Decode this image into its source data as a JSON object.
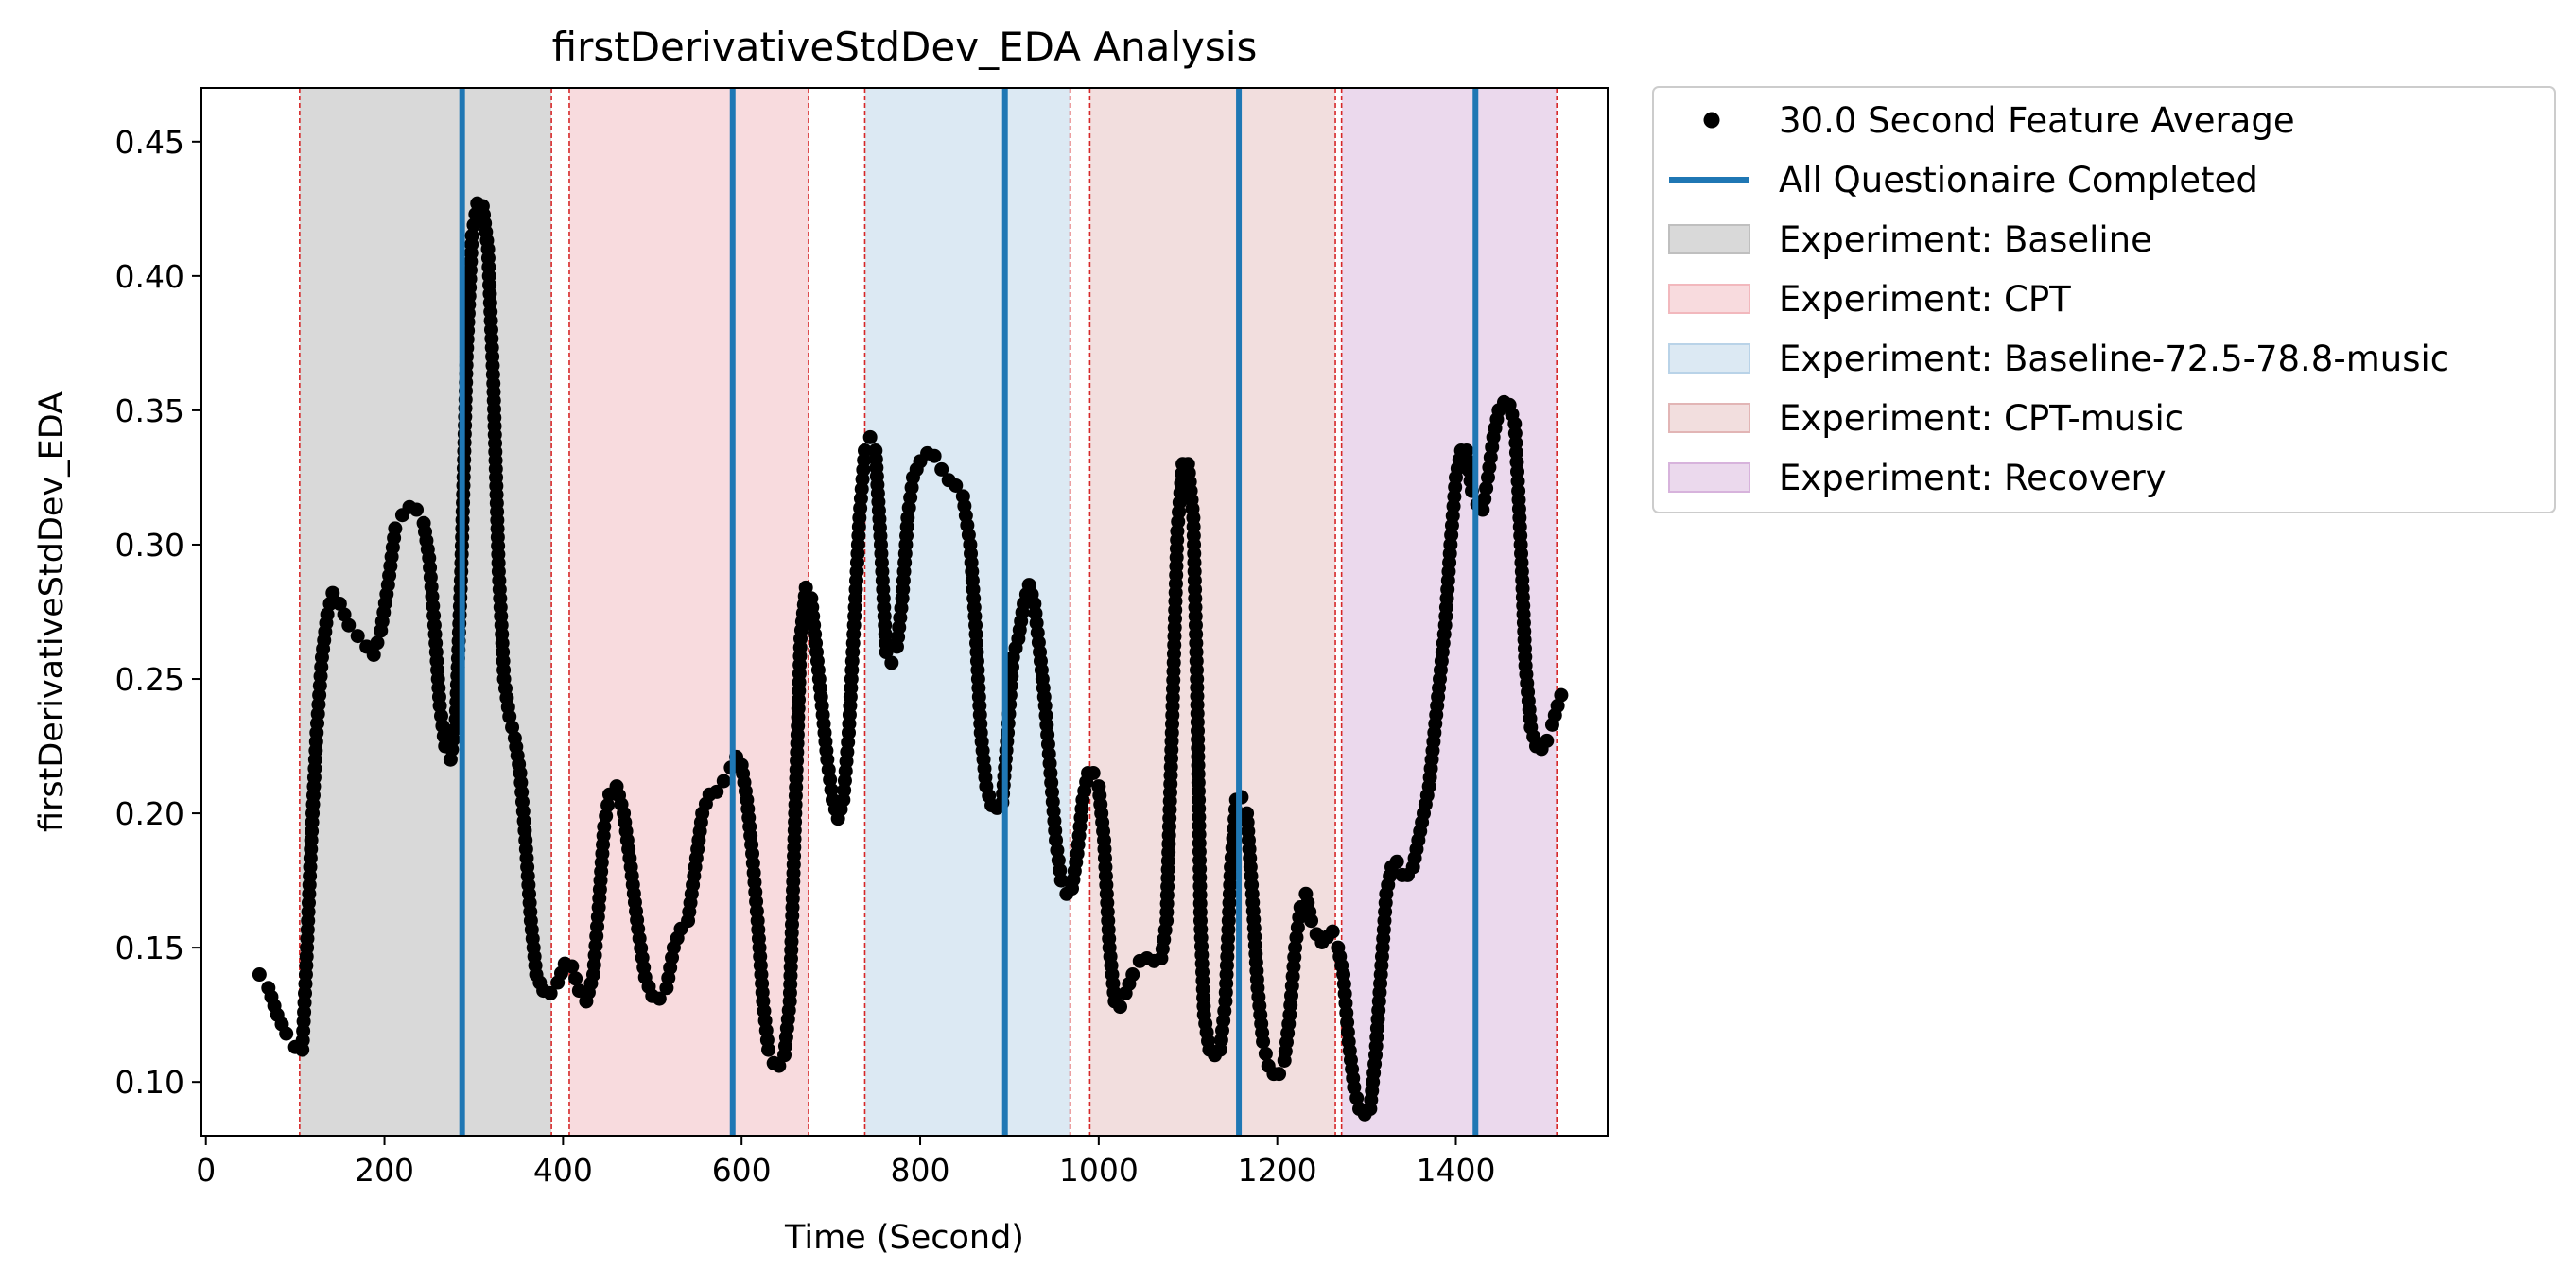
{
  "chart_data": {
    "type": "scatter",
    "title": "firstDerivativeStdDev_EDA Analysis",
    "xlabel": "Time (Second)",
    "ylabel": "firstDerivativeStdDev_EDA",
    "xlim": [
      -5,
      1570
    ],
    "ylim": [
      0.08,
      0.47
    ],
    "xticks": [
      0,
      200,
      400,
      600,
      800,
      1000,
      1200,
      1400
    ],
    "yticks": [
      0.1,
      0.15,
      0.2,
      0.25,
      0.3,
      0.35,
      0.4,
      0.45
    ],
    "xtick_labels": [
      "0",
      "200",
      "400",
      "600",
      "800",
      "1000",
      "1200",
      "1400"
    ],
    "ytick_labels": [
      "0.10",
      "0.15",
      "0.20",
      "0.25",
      "0.30",
      "0.35",
      "0.40",
      "0.45"
    ],
    "grid": false,
    "legend_position": "outside-right-top",
    "series": [
      {
        "name": "30.0 Second Feature Average",
        "kind": "scatter",
        "color": "#000000",
        "points": [
          [
            60,
            0.14
          ],
          [
            70,
            0.135
          ],
          [
            80,
            0.125
          ],
          [
            90,
            0.118
          ],
          [
            100,
            0.113
          ],
          [
            108,
            0.112
          ],
          [
            112,
            0.14
          ],
          [
            118,
            0.19
          ],
          [
            124,
            0.23
          ],
          [
            130,
            0.258
          ],
          [
            136,
            0.274
          ],
          [
            142,
            0.282
          ],
          [
            150,
            0.278
          ],
          [
            160,
            0.27
          ],
          [
            170,
            0.266
          ],
          [
            180,
            0.262
          ],
          [
            188,
            0.259
          ],
          [
            196,
            0.268
          ],
          [
            204,
            0.285
          ],
          [
            212,
            0.306
          ],
          [
            220,
            0.311
          ],
          [
            228,
            0.314
          ],
          [
            236,
            0.313
          ],
          [
            244,
            0.308
          ],
          [
            250,
            0.295
          ],
          [
            256,
            0.27
          ],
          [
            262,
            0.24
          ],
          [
            268,
            0.225
          ],
          [
            274,
            0.22
          ],
          [
            280,
            0.235
          ],
          [
            286,
            0.29
          ],
          [
            292,
            0.37
          ],
          [
            298,
            0.415
          ],
          [
            304,
            0.427
          ],
          [
            310,
            0.426
          ],
          [
            316,
            0.41
          ],
          [
            322,
            0.36
          ],
          [
            328,
            0.29
          ],
          [
            334,
            0.25
          ],
          [
            340,
            0.236
          ],
          [
            346,
            0.228
          ],
          [
            352,
            0.215
          ],
          [
            358,
            0.19
          ],
          [
            364,
            0.16
          ],
          [
            370,
            0.14
          ],
          [
            378,
            0.134
          ],
          [
            386,
            0.133
          ],
          [
            394,
            0.137
          ],
          [
            402,
            0.144
          ],
          [
            410,
            0.143
          ],
          [
            418,
            0.134
          ],
          [
            426,
            0.13
          ],
          [
            434,
            0.14
          ],
          [
            440,
            0.165
          ],
          [
            446,
            0.195
          ],
          [
            452,
            0.207
          ],
          [
            460,
            0.21
          ],
          [
            468,
            0.2
          ],
          [
            476,
            0.18
          ],
          [
            484,
            0.157
          ],
          [
            492,
            0.139
          ],
          [
            500,
            0.132
          ],
          [
            508,
            0.131
          ],
          [
            516,
            0.135
          ],
          [
            524,
            0.15
          ],
          [
            532,
            0.157
          ],
          [
            540,
            0.16
          ],
          [
            548,
            0.18
          ],
          [
            556,
            0.2
          ],
          [
            564,
            0.207
          ],
          [
            572,
            0.208
          ],
          [
            580,
            0.212
          ],
          [
            588,
            0.217
          ],
          [
            594,
            0.221
          ],
          [
            600,
            0.218
          ],
          [
            606,
            0.205
          ],
          [
            612,
            0.185
          ],
          [
            618,
            0.16
          ],
          [
            624,
            0.13
          ],
          [
            630,
            0.112
          ],
          [
            636,
            0.107
          ],
          [
            642,
            0.106
          ],
          [
            648,
            0.11
          ],
          [
            654,
            0.13
          ],
          [
            660,
            0.2
          ],
          [
            666,
            0.265
          ],
          [
            672,
            0.284
          ],
          [
            678,
            0.28
          ],
          [
            684,
            0.26
          ],
          [
            690,
            0.24
          ],
          [
            696,
            0.22
          ],
          [
            702,
            0.205
          ],
          [
            708,
            0.198
          ],
          [
            714,
            0.205
          ],
          [
            720,
            0.23
          ],
          [
            726,
            0.27
          ],
          [
            732,
            0.31
          ],
          [
            738,
            0.335
          ],
          [
            744,
            0.34
          ],
          [
            750,
            0.335
          ],
          [
            756,
            0.3
          ],
          [
            762,
            0.26
          ],
          [
            768,
            0.256
          ],
          [
            774,
            0.262
          ],
          [
            780,
            0.28
          ],
          [
            786,
            0.31
          ],
          [
            792,
            0.325
          ],
          [
            800,
            0.331
          ],
          [
            808,
            0.334
          ],
          [
            816,
            0.333
          ],
          [
            824,
            0.328
          ],
          [
            832,
            0.324
          ],
          [
            840,
            0.322
          ],
          [
            848,
            0.318
          ],
          [
            856,
            0.3
          ],
          [
            862,
            0.27
          ],
          [
            868,
            0.23
          ],
          [
            874,
            0.21
          ],
          [
            880,
            0.203
          ],
          [
            886,
            0.202
          ],
          [
            892,
            0.204
          ],
          [
            898,
            0.23
          ],
          [
            904,
            0.258
          ],
          [
            910,
            0.265
          ],
          [
            916,
            0.278
          ],
          [
            922,
            0.285
          ],
          [
            928,
            0.278
          ],
          [
            934,
            0.26
          ],
          [
            940,
            0.24
          ],
          [
            946,
            0.215
          ],
          [
            952,
            0.19
          ],
          [
            958,
            0.175
          ],
          [
            964,
            0.17
          ],
          [
            970,
            0.172
          ],
          [
            976,
            0.185
          ],
          [
            982,
            0.205
          ],
          [
            988,
            0.215
          ],
          [
            994,
            0.215
          ],
          [
            1000,
            0.21
          ],
          [
            1006,
            0.19
          ],
          [
            1012,
            0.15
          ],
          [
            1018,
            0.13
          ],
          [
            1024,
            0.128
          ],
          [
            1030,
            0.133
          ],
          [
            1038,
            0.14
          ],
          [
            1046,
            0.145
          ],
          [
            1054,
            0.146
          ],
          [
            1062,
            0.145
          ],
          [
            1070,
            0.146
          ],
          [
            1076,
            0.16
          ],
          [
            1082,
            0.23
          ],
          [
            1088,
            0.305
          ],
          [
            1094,
            0.33
          ],
          [
            1100,
            0.33
          ],
          [
            1106,
            0.31
          ],
          [
            1110,
            0.25
          ],
          [
            1114,
            0.16
          ],
          [
            1118,
            0.125
          ],
          [
            1124,
            0.112
          ],
          [
            1130,
            0.11
          ],
          [
            1136,
            0.112
          ],
          [
            1142,
            0.13
          ],
          [
            1148,
            0.18
          ],
          [
            1154,
            0.205
          ],
          [
            1160,
            0.206
          ],
          [
            1166,
            0.2
          ],
          [
            1172,
            0.17
          ],
          [
            1178,
            0.135
          ],
          [
            1184,
            0.115
          ],
          [
            1190,
            0.106
          ],
          [
            1196,
            0.103
          ],
          [
            1202,
            0.103
          ],
          [
            1208,
            0.108
          ],
          [
            1214,
            0.125
          ],
          [
            1220,
            0.15
          ],
          [
            1226,
            0.165
          ],
          [
            1232,
            0.17
          ],
          [
            1238,
            0.16
          ],
          [
            1244,
            0.155
          ],
          [
            1250,
            0.152
          ],
          [
            1256,
            0.154
          ],
          [
            1262,
            0.156
          ],
          [
            1268,
            0.15
          ],
          [
            1274,
            0.14
          ],
          [
            1280,
            0.115
          ],
          [
            1286,
            0.098
          ],
          [
            1292,
            0.09
          ],
          [
            1298,
            0.088
          ],
          [
            1304,
            0.09
          ],
          [
            1310,
            0.11
          ],
          [
            1316,
            0.14
          ],
          [
            1322,
            0.17
          ],
          [
            1328,
            0.18
          ],
          [
            1334,
            0.182
          ],
          [
            1340,
            0.177
          ],
          [
            1346,
            0.177
          ],
          [
            1352,
            0.18
          ],
          [
            1358,
            0.19
          ],
          [
            1364,
            0.2
          ],
          [
            1370,
            0.21
          ],
          [
            1376,
            0.23
          ],
          [
            1382,
            0.25
          ],
          [
            1388,
            0.27
          ],
          [
            1394,
            0.3
          ],
          [
            1400,
            0.325
          ],
          [
            1406,
            0.335
          ],
          [
            1412,
            0.335
          ],
          [
            1418,
            0.32
          ],
          [
            1424,
            0.315
          ],
          [
            1430,
            0.313
          ],
          [
            1436,
            0.325
          ],
          [
            1442,
            0.34
          ],
          [
            1448,
            0.35
          ],
          [
            1454,
            0.353
          ],
          [
            1460,
            0.352
          ],
          [
            1466,
            0.345
          ],
          [
            1470,
            0.32
          ],
          [
            1474,
            0.29
          ],
          [
            1478,
            0.255
          ],
          [
            1484,
            0.232
          ],
          [
            1490,
            0.225
          ],
          [
            1496,
            0.224
          ],
          [
            1502,
            0.227
          ],
          [
            1508,
            0.233
          ],
          [
            1514,
            0.24
          ],
          [
            1518,
            0.244
          ]
        ]
      }
    ],
    "vlines": {
      "name": "All Questionaire Completed",
      "color": "#1f77b4",
      "x": [
        287,
        590,
        895,
        1157,
        1422
      ]
    },
    "regions": [
      {
        "name": "Experiment: Baseline",
        "color": "#bfbfbf",
        "alpha": 0.6,
        "start": 105,
        "end": 387
      },
      {
        "name": "Experiment: CPT",
        "color": "#f2b8bd",
        "alpha": 0.5,
        "start": 407,
        "end": 675
      },
      {
        "name": "Experiment: Baseline-72.5-78.8-music",
        "color": "#b9d3e8",
        "alpha": 0.5,
        "start": 738,
        "end": 968
      },
      {
        "name": "Experiment: CPT-music",
        "color": "#e2b5b5",
        "alpha": 0.45,
        "start": 990,
        "end": 1265
      },
      {
        "name": "Experiment: Recovery",
        "color": "#d7b3dc",
        "alpha": 0.5,
        "start": 1272,
        "end": 1513
      }
    ],
    "boundary_lines": {
      "color": "#d62728",
      "x": [
        105,
        387,
        407,
        675,
        738,
        968,
        990,
        1265,
        1272,
        1513
      ]
    }
  },
  "legend": {
    "items": [
      {
        "label": "30.0 Second Feature Average",
        "kind": "marker",
        "color": "#000000"
      },
      {
        "label": "All Questionaire Completed",
        "kind": "line",
        "color": "#1f77b4"
      },
      {
        "label": "Experiment: Baseline",
        "kind": "patch",
        "color": "#bfbfbf",
        "alpha": 0.6
      },
      {
        "label": "Experiment: CPT",
        "kind": "patch",
        "color": "#f2b8bd",
        "alpha": 0.5
      },
      {
        "label": "Experiment: Baseline-72.5-78.8-music",
        "kind": "patch",
        "color": "#b9d3e8",
        "alpha": 0.5
      },
      {
        "label": "Experiment: CPT-music",
        "kind": "patch",
        "color": "#e2b5b5",
        "alpha": 0.45
      },
      {
        "label": "Experiment: Recovery",
        "kind": "patch",
        "color": "#d7b3dc",
        "alpha": 0.5
      }
    ]
  }
}
